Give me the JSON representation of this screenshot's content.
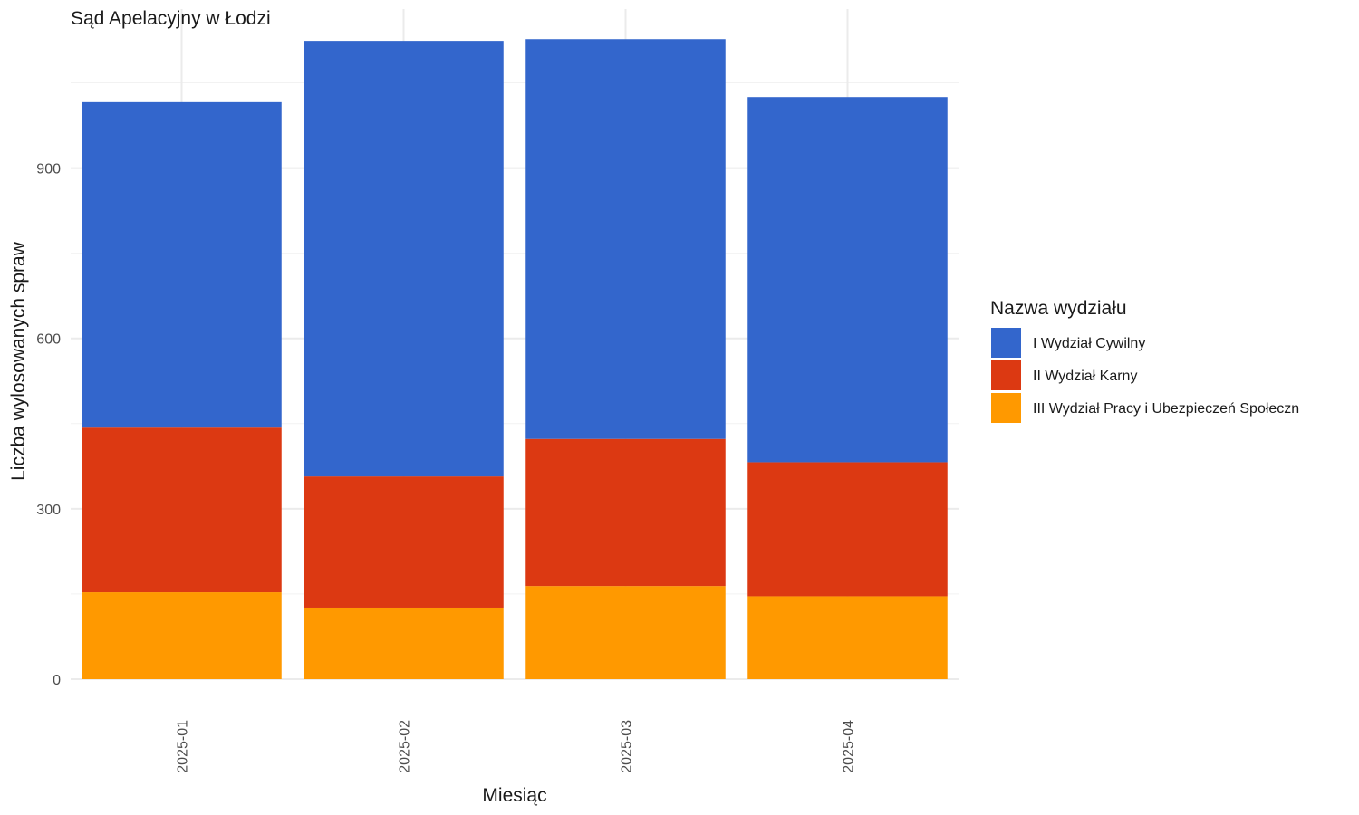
{
  "chart_data": {
    "type": "bar",
    "stacked": true,
    "title": "Sąd Apelacyjny w Łodzi",
    "xlabel": "Miesiąc",
    "ylabel": "Liczba wylosowanych spraw",
    "categories": [
      "2025-01",
      "2025-02",
      "2025-03",
      "2025-04"
    ],
    "yticks": [
      0,
      300,
      600,
      900
    ],
    "ylim": [
      0,
      1180
    ],
    "grid": true,
    "legend_title": "Nazwa wydziału",
    "legend_position": "right",
    "series": [
      {
        "name": "III Wydział Pracy i Ubezpieczeń Społeczn",
        "color": "#FF9900",
        "values": [
          153,
          126,
          164,
          146
        ]
      },
      {
        "name": "II Wydział Karny",
        "color": "#DC3912",
        "values": [
          290,
          231,
          259,
          236
        ]
      },
      {
        "name": "I Wydział Cywilny",
        "color": "#3366CC",
        "values": [
          573,
          767,
          704,
          643
        ]
      }
    ],
    "legend_order": [
      2,
      1,
      0
    ]
  }
}
